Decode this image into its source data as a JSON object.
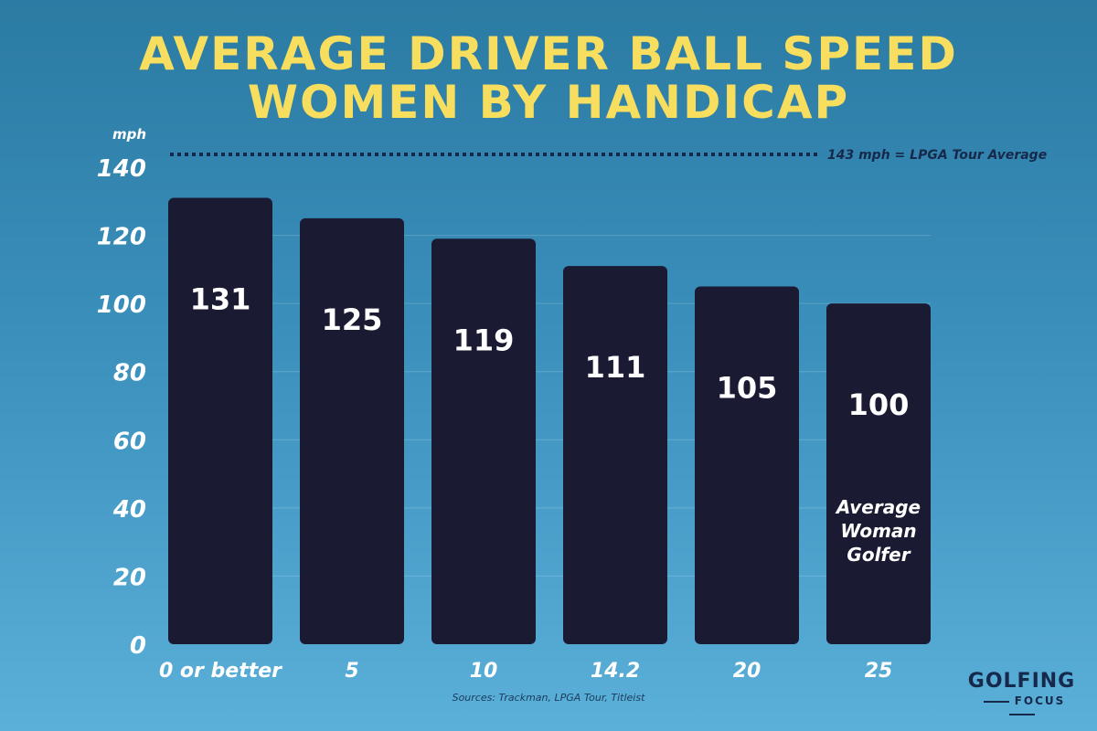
{
  "chart_data": {
    "type": "bar",
    "title": [
      "AVERAGE DRIVER BALL SPEED",
      "WOMEN BY HANDICAP"
    ],
    "ylabel": "mph",
    "categories": [
      "0 or better",
      "5",
      "10",
      "14.2",
      "20",
      "25"
    ],
    "values": [
      131,
      125,
      119,
      111,
      105,
      100
    ],
    "data_labels": [
      "131",
      "125",
      "119",
      "111",
      "105",
      "100"
    ],
    "bar_annotations": {
      "5": [
        "Average",
        "Woman",
        "Golfer"
      ]
    },
    "ylim": [
      0,
      140
    ],
    "yticks": [
      0,
      20,
      40,
      60,
      80,
      100,
      120,
      140
    ],
    "grid": true,
    "reference_line": {
      "value": 143,
      "label": "143 mph = LPGA Tour Average"
    },
    "source": "Sources: Trackman, LPGA Tour, Titleist"
  },
  "colors": {
    "bar": "#1a1a33",
    "title": "#f7de5e",
    "text": "#ffffff",
    "ref_line": "#17294a"
  },
  "logo": {
    "line1": "GOLFING",
    "line2": "FOCUS"
  }
}
